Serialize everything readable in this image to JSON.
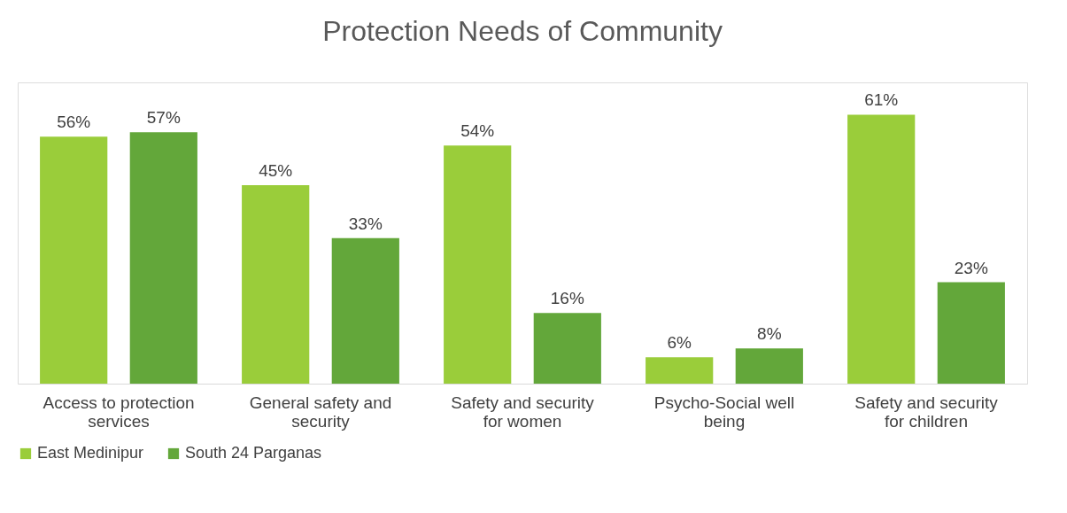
{
  "chart_data": {
    "type": "bar",
    "title": "Protection Needs of Community",
    "categories": [
      "Access to protection services",
      "General safety and security",
      "Safety and security for women",
      "Psycho-Social well being",
      "Safety and security for children"
    ],
    "series": [
      {
        "name": "East Medinipur",
        "color": "#9acd3a",
        "values": [
          56,
          45,
          54,
          6,
          61
        ],
        "value_labels": [
          "56%",
          "45%",
          "54%",
          "6%",
          "61%"
        ]
      },
      {
        "name": "South 24 Parganas",
        "color": "#63a73a",
        "values": [
          57,
          33,
          16,
          8,
          23
        ],
        "value_labels": [
          "57%",
          "33%",
          "16%",
          "8%",
          "23%"
        ]
      }
    ],
    "legend": "bottom",
    "grid": false,
    "tick_labels": "x"
  }
}
